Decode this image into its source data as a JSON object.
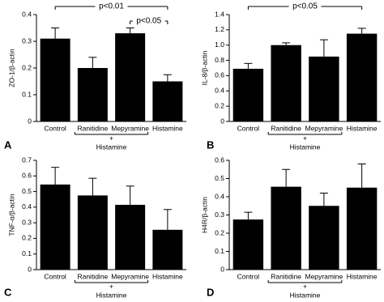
{
  "chart_data": [
    {
      "type": "bar",
      "panel_label": "A",
      "ylabel": "ZO-1/β-actin",
      "categories": [
        "Control",
        "Ranitidine",
        "Mepyramine",
        "Histamine"
      ],
      "values": [
        0.31,
        0.2,
        0.33,
        0.15
      ],
      "errors": [
        0.04,
        0.04,
        0.02,
        0.025
      ],
      "color": "#000000",
      "ylim": [
        0,
        0.4
      ],
      "yticks": [
        0,
        0.1,
        0.2,
        0.3,
        0.4
      ],
      "annotations": [
        {
          "text": "p<0.01"
        },
        {
          "text": "p<0.05"
        }
      ],
      "group_mark": "+",
      "group_label": "Histamine"
    },
    {
      "type": "bar",
      "panel_label": "B",
      "ylabel": "IL-8/β-actin",
      "categories": [
        "Control",
        "Ranitidine",
        "Mepyramine",
        "Histamine"
      ],
      "values": [
        0.69,
        1.0,
        0.85,
        1.15
      ],
      "errors": [
        0.07,
        0.03,
        0.22,
        0.07
      ],
      "color": "#000000",
      "ylim": [
        0,
        1.4
      ],
      "yticks": [
        0,
        0.2,
        0.4,
        0.6,
        0.8,
        {
          "value": 1.0,
          "label": "1.0"
        },
        1.2,
        1.4
      ],
      "annotations": [
        {
          "text": "p<0.05"
        }
      ],
      "group_mark": "+",
      "group_label": "Histamine"
    },
    {
      "type": "bar",
      "panel_label": "C",
      "ylabel": "TNF-α/β-actin",
      "categories": [
        "Control",
        "Ranitidine",
        "Mepyramine",
        "Histamine"
      ],
      "values": [
        0.545,
        0.475,
        0.415,
        0.255
      ],
      "errors": [
        0.11,
        0.11,
        0.12,
        0.13
      ],
      "color": "#000000",
      "ylim": [
        0,
        0.7
      ],
      "yticks": [
        0,
        0.1,
        0.2,
        0.3,
        0.4,
        0.5,
        0.6,
        0.7
      ],
      "group_mark": "+",
      "group_label": "Histamine"
    },
    {
      "type": "bar",
      "panel_label": "D",
      "ylabel": "H4R/β-actin",
      "categories": [
        "Control",
        "Ranitidine",
        "Mepyramine",
        "Histamine"
      ],
      "values": [
        0.275,
        0.455,
        0.35,
        0.45
      ],
      "errors": [
        0.04,
        0.095,
        0.07,
        0.13
      ],
      "color": "#000000",
      "ylim": [
        0,
        0.6
      ],
      "yticks": [
        0,
        0.1,
        0.2,
        0.3,
        0.4,
        0.5,
        0.6
      ],
      "group_mark": "+",
      "group_label": "Histamine"
    }
  ]
}
